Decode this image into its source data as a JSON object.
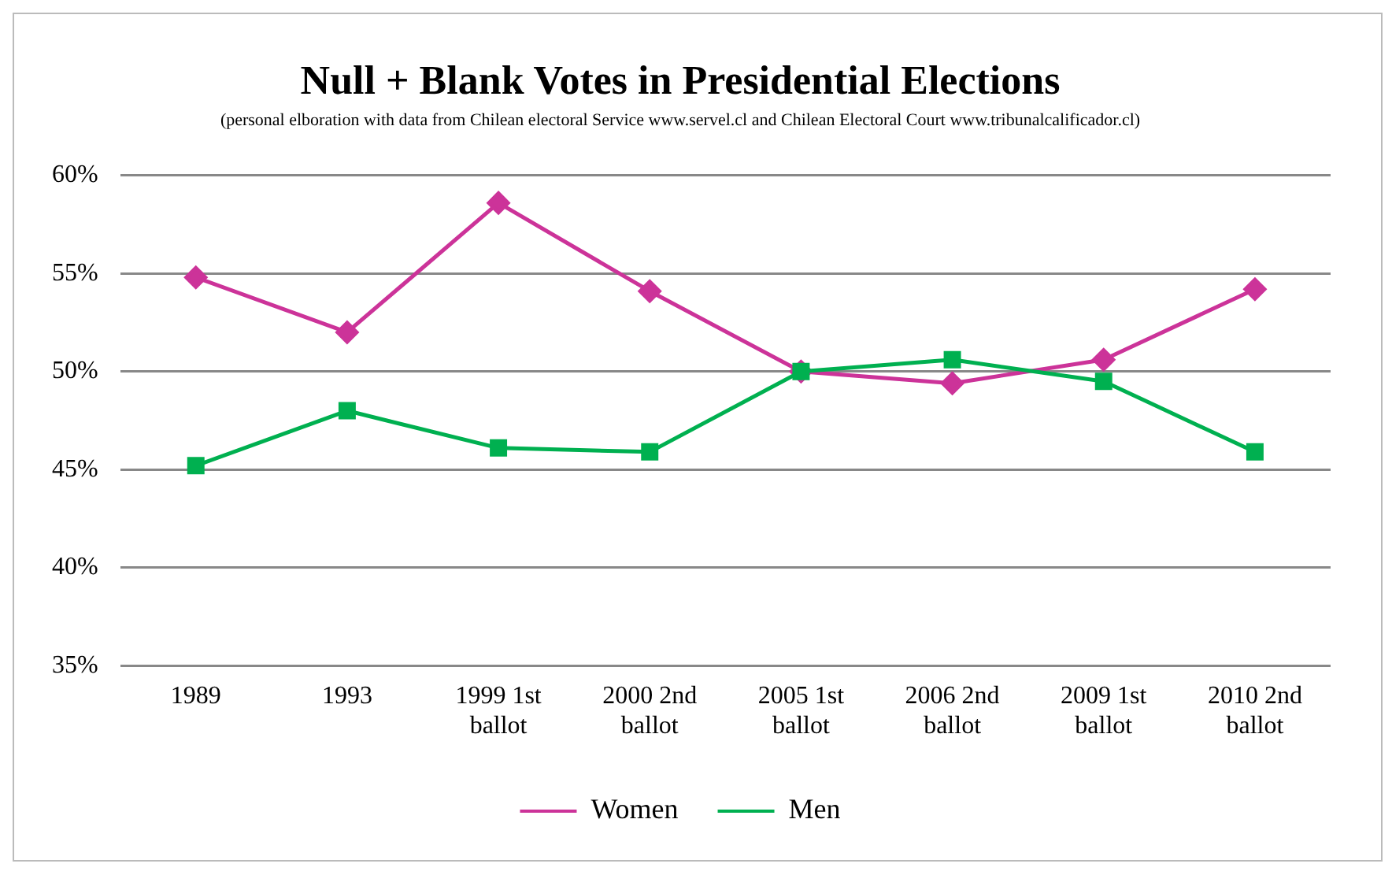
{
  "chart_data": {
    "type": "line",
    "title": "Null + Blank Votes in Presidential Elections",
    "subtitle": "(personal elboration with data from Chilean electoral Service www.servel.cl and Chilean Electoral Court www.tribunalcalificador.cl)",
    "categories": [
      "1989",
      "1993",
      "1999 1st ballot",
      "2000 2nd ballot",
      "2005 1st ballot",
      "2006 2nd ballot",
      "2009 1st ballot",
      "2010 2nd ballot"
    ],
    "series": [
      {
        "name": "Women",
        "color": "#cc3399",
        "marker": "diamond",
        "values": [
          54.8,
          52.0,
          58.6,
          54.1,
          50.0,
          49.4,
          50.6,
          54.2
        ]
      },
      {
        "name": "Men",
        "color": "#00b050",
        "marker": "square",
        "values": [
          45.2,
          48.0,
          46.1,
          45.9,
          50.0,
          50.6,
          49.5,
          45.9
        ]
      }
    ],
    "ylim": [
      35,
      60
    ],
    "yticks": [
      {
        "value": 35,
        "label": "35%"
      },
      {
        "value": 40,
        "label": "40%"
      },
      {
        "value": 45,
        "label": "45%"
      },
      {
        "value": 50,
        "label": "50%"
      },
      {
        "value": 55,
        "label": "55%"
      },
      {
        "value": 60,
        "label": "60%"
      }
    ],
    "grid": "y",
    "legend": "bottom"
  }
}
